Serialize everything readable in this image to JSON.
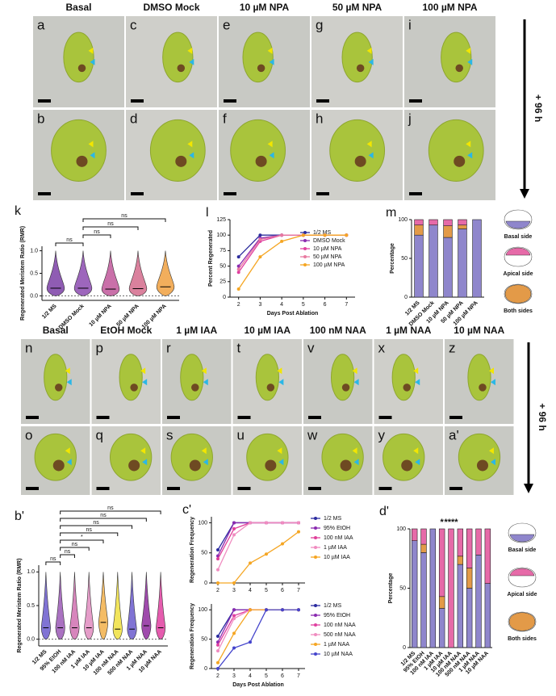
{
  "top_photos": {
    "columns": [
      "Basal",
      "DMSO Mock",
      "10 µM NPA",
      "50 µM NPA",
      "100 µM NPA"
    ],
    "letters_row1": [
      "a",
      "c",
      "e",
      "g",
      "i"
    ],
    "letters_row2": [
      "b",
      "d",
      "f",
      "h",
      "j"
    ],
    "time_label": "+ 96 h"
  },
  "bottom_photos": {
    "columns": [
      "Basal",
      "EtOH Mock",
      "1 µM IAA",
      "10 µM IAA",
      "100 nM NAA",
      "1 µM NAA",
      "10 µM NAA"
    ],
    "letters_row1": [
      "n",
      "p",
      "r",
      "t",
      "v",
      "x",
      "z"
    ],
    "letters_row2": [
      "o",
      "q",
      "s",
      "u",
      "w",
      "y",
      "a'"
    ],
    "time_label": "+ 96 h"
  },
  "chart_data": [
    {
      "type": "violin",
      "letter": "k",
      "ylabel": "Regenerated Meristem Ratio (RMR)",
      "categories": [
        "1/2 MS",
        "DMSO Mock",
        "10 µM NPA",
        "50 µM NPA",
        "100 µM NPA"
      ],
      "values": [
        0.17,
        0.17,
        0.15,
        0.16,
        0.2
      ],
      "colors": [
        "#7b3fa6",
        "#8c4bb0",
        "#c0579a",
        "#d46b8c",
        "#f0a040"
      ],
      "ylim": [
        -0.1,
        1.1
      ],
      "yticks": [
        {
          "value": 0,
          "label": "0.0"
        },
        {
          "value": 0.5,
          "label": "0.5"
        },
        {
          "value": 1,
          "label": "1.0"
        }
      ],
      "comparisons": [
        {
          "groups": [
            "1/2 MS",
            "DMSO Mock"
          ],
          "label": "ns"
        },
        {
          "groups": [
            "DMSO Mock",
            "10 µM NPA"
          ],
          "label": "ns"
        },
        {
          "groups": [
            "DMSO Mock",
            "50 µM NPA"
          ],
          "label": "ns"
        },
        {
          "groups": [
            "DMSO Mock",
            "100 µM NPA"
          ],
          "label": "ns"
        }
      ]
    },
    {
      "type": "line",
      "letter": "l",
      "ylabel": "Percent Regenerated",
      "xlabel": "Days Post Ablation",
      "x": [
        2,
        3,
        4,
        5,
        6,
        7
      ],
      "xlim": [
        1.6,
        7.4
      ],
      "xticks": [
        2,
        3,
        4,
        5,
        6,
        7
      ],
      "ylim": [
        0,
        125
      ],
      "yticks": [
        0,
        25,
        50,
        75,
        100,
        125
      ],
      "series": [
        {
          "name": "1/2 MS",
          "color": "#2c2c9c",
          "values": [
            65,
            100,
            100,
            100,
            100,
            100
          ]
        },
        {
          "name": "DMSO Mock",
          "color": "#8a2bb0",
          "values": [
            50,
            95,
            100,
            100,
            100,
            100
          ]
        },
        {
          "name": "10 µM NPA",
          "color": "#e040a0",
          "values": [
            40,
            90,
            100,
            100,
            100,
            100
          ]
        },
        {
          "name": "50 µM NPA",
          "color": "#e87aa0",
          "values": [
            45,
            93,
            100,
            100,
            100,
            100
          ]
        },
        {
          "name": "100 µM NPA",
          "color": "#f5a623",
          "values": [
            13,
            65,
            90,
            100,
            100,
            100
          ]
        }
      ]
    },
    {
      "type": "stacked",
      "letter": "m",
      "ylabel": "Percentage",
      "categories": [
        "1/2 MS",
        "DMSO Mock",
        "10 µM NPA",
        "50 µM NPA",
        "100 µM NPA"
      ],
      "ylim": [
        0,
        100
      ],
      "yticks": [
        0,
        50,
        100
      ],
      "series": [
        {
          "name": "Basal side",
          "color": "#8f86cc",
          "values": [
            80,
            93,
            77,
            88,
            100
          ]
        },
        {
          "name": "Both sides",
          "color": "#e39a48",
          "values": [
            13,
            0,
            15,
            5,
            0
          ]
        },
        {
          "name": "Apical side",
          "color": "#e66aa8",
          "values": [
            7,
            7,
            8,
            7,
            0
          ]
        }
      ],
      "annotations": []
    },
    {
      "type": "violin",
      "letter": "b'",
      "ylabel": "Regenerated Meristem Ratio (RMR)",
      "categories": [
        "1/2 MS",
        "95% EtOH",
        "100 nM IAA",
        "1 µM IAA",
        "10 µM IAA",
        "100 nM NAA",
        "500 nM NAA",
        "1 µM NAA",
        "10 µM NAA"
      ],
      "values": [
        0.17,
        0.17,
        0.17,
        0.17,
        0.25,
        0.15,
        0.15,
        0.2,
        0.17
      ],
      "colors": [
        "#6a5acd",
        "#9b59b6",
        "#d070b0",
        "#e08cc0",
        "#f2b04a",
        "#f0e040",
        "#6a5acd",
        "#8e2b9e",
        "#e040a0"
      ],
      "ylim": [
        -0.1,
        1.1
      ],
      "yticks": [
        {
          "value": 0,
          "label": "0.0"
        },
        {
          "value": 0.5,
          "label": "0.5"
        },
        {
          "value": 1,
          "label": "1.0"
        }
      ],
      "comparisons": [
        {
          "groups": [
            "1/2 MS",
            "95% EtOH"
          ],
          "label": "ns"
        },
        {
          "groups": [
            "95% EtOH",
            "100 nM IAA"
          ],
          "label": "ns"
        },
        {
          "groups": [
            "95% EtOH",
            "1 µM IAA"
          ],
          "label": "ns"
        },
        {
          "groups": [
            "95% EtOH",
            "10 µM IAA"
          ],
          "label": "*"
        },
        {
          "groups": [
            "95% EtOH",
            "100 nM NAA"
          ],
          "label": "ns"
        },
        {
          "groups": [
            "95% EtOH",
            "500 nM NAA"
          ],
          "label": "ns"
        },
        {
          "groups": [
            "95% EtOH",
            "1 µM NAA"
          ],
          "label": "ns"
        },
        {
          "groups": [
            "95% EtOH",
            "10 µM NAA"
          ],
          "label": "ns"
        }
      ]
    },
    {
      "type": "line",
      "letter": "c'",
      "ylabel": "Regeneration Frequency",
      "x": [
        2,
        3,
        4,
        5,
        6,
        7
      ],
      "xlim": [
        1.6,
        7.4
      ],
      "xticks": [
        2,
        3,
        4,
        5,
        6,
        7
      ],
      "ylim": [
        0,
        110
      ],
      "yticks": [
        0,
        50,
        100
      ],
      "series": [
        {
          "name": "1/2 MS",
          "color": "#2c2ca0",
          "values": [
            55,
            100,
            100,
            100,
            100,
            100
          ]
        },
        {
          "name": "95% EtOH",
          "color": "#8a2bb0",
          "values": [
            45,
            100,
            100,
            100,
            100,
            100
          ]
        },
        {
          "name": "100 nM IAA",
          "color": "#e0409a",
          "values": [
            40,
            90,
            100,
            100,
            100,
            100
          ]
        },
        {
          "name": "1 µM IAA",
          "color": "#f08cc0",
          "values": [
            22,
            80,
            100,
            100,
            100,
            100
          ]
        },
        {
          "name": "10 µM IAA",
          "color": "#f5a623",
          "values": [
            0,
            0,
            33,
            48,
            65,
            85
          ]
        }
      ]
    },
    {
      "type": "line",
      "ylabel": "Regeneration Frequency",
      "xlabel": "Days Post Ablation",
      "x": [
        2,
        3,
        4,
        5,
        6,
        7
      ],
      "xlim": [
        1.6,
        7.4
      ],
      "xticks": [
        2,
        3,
        4,
        5,
        6,
        7
      ],
      "ylim": [
        0,
        110
      ],
      "yticks": [
        0,
        50,
        100
      ],
      "series": [
        {
          "name": "1/2 MS",
          "color": "#2c2ca0",
          "values": [
            55,
            100,
            100,
            100,
            100,
            100
          ]
        },
        {
          "name": "95% EtOH",
          "color": "#8a2bb0",
          "values": [
            45,
            100,
            100,
            100,
            100,
            100
          ]
        },
        {
          "name": "100 nM NAA",
          "color": "#e040a0",
          "values": [
            40,
            90,
            100,
            100,
            100,
            100
          ]
        },
        {
          "name": "500 nM NAA",
          "color": "#f08cc0",
          "values": [
            30,
            85,
            100,
            100,
            100,
            100
          ]
        },
        {
          "name": "1 µM NAA",
          "color": "#f5a623",
          "values": [
            10,
            60,
            100,
            100,
            100,
            100
          ]
        },
        {
          "name": "10 µM NAA",
          "color": "#4444cc",
          "values": [
            0,
            35,
            45,
            100,
            100,
            100
          ]
        }
      ]
    },
    {
      "type": "stacked",
      "letter": "d'",
      "ylabel": "Percentage",
      "categories": [
        "1/2 MS",
        "95% EtOH",
        "100 nM IAA",
        "1 µM IAA",
        "10 µM IAA",
        "100 nM NAA",
        "500 nM NAA",
        "1 µM NAA",
        "10 µM NAA"
      ],
      "ylim": [
        0,
        100
      ],
      "yticks": [
        0,
        50,
        100
      ],
      "series": [
        {
          "name": "Basal side",
          "color": "#8f86cc",
          "values": [
            90,
            80,
            100,
            33,
            0,
            70,
            50,
            78,
            54
          ]
        },
        {
          "name": "Both sides",
          "color": "#e39a48",
          "values": [
            0,
            7,
            0,
            10,
            0,
            7,
            17,
            0,
            0
          ]
        },
        {
          "name": "Apical side",
          "color": "#e66aa8",
          "values": [
            10,
            13,
            0,
            57,
            100,
            23,
            33,
            22,
            46
          ]
        }
      ],
      "annotations": [
        {
          "category": "1 µM IAA",
          "label": "*"
        },
        {
          "category": "10 µM IAA",
          "label": "****"
        }
      ]
    }
  ]
}
